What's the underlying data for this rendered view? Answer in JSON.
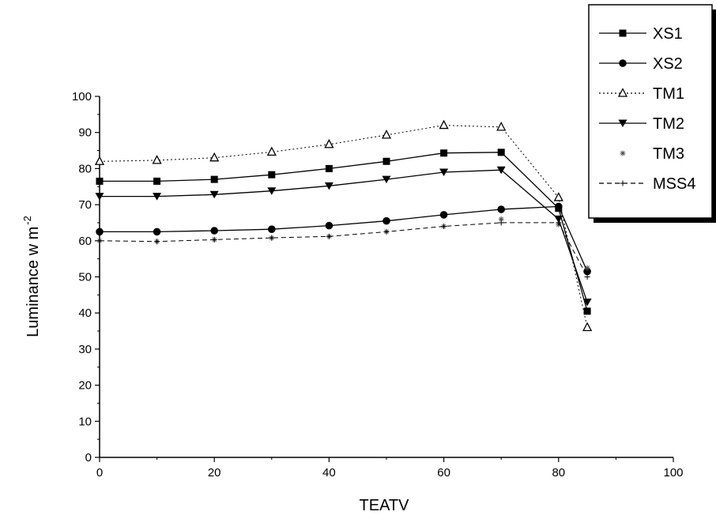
{
  "chart_data": {
    "type": "line",
    "title": "",
    "xlabel": "TEATV",
    "ylabel": "Luminance w m",
    "ylabel_exponent": "-2",
    "xlim": [
      0,
      100
    ],
    "ylim": [
      0,
      100
    ],
    "x_ticks": [
      0,
      20,
      40,
      60,
      80,
      100
    ],
    "x_tick_labels": [
      "0",
      "20",
      "40",
      "60",
      "80",
      "100"
    ],
    "y_ticks": [
      0,
      10,
      20,
      30,
      40,
      50,
      60,
      70,
      80,
      90,
      100
    ],
    "y_tick_labels": [
      "0",
      "10",
      "20",
      "30",
      "40",
      "50",
      "60",
      "70",
      "80",
      "90",
      "100"
    ],
    "grid": false,
    "legend_position": "top-right",
    "x": [
      0,
      10,
      20,
      30,
      40,
      50,
      60,
      70,
      80,
      85
    ],
    "series": [
      {
        "name": "XS1",
        "marker": "filled-square",
        "line": "solid",
        "values": [
          76.5,
          76.5,
          77,
          78.3,
          80,
          82,
          84.3,
          84.5,
          69,
          40.5
        ]
      },
      {
        "name": "XS2",
        "marker": "filled-circle",
        "line": "solid",
        "values": [
          62.5,
          62.5,
          62.8,
          63.2,
          64.2,
          65.5,
          67.2,
          68.7,
          69.5,
          51.5
        ]
      },
      {
        "name": "TM1",
        "marker": "open-triangle-up",
        "line": "dotted",
        "values": [
          82,
          82.3,
          83,
          84.6,
          86.7,
          89.3,
          92,
          91.5,
          72,
          36
        ]
      },
      {
        "name": "TM2",
        "marker": "filled-triangle-down",
        "line": "solid",
        "values": [
          72.3,
          72.3,
          72.8,
          73.8,
          75.2,
          77,
          79,
          79.6,
          66,
          43
        ]
      },
      {
        "name": "TM3",
        "marker": "star",
        "line": "none",
        "values": [
          60,
          59.8,
          60.3,
          60.8,
          61.2,
          62.5,
          64,
          66,
          64.5,
          52.5
        ]
      },
      {
        "name": "MSS4",
        "marker": "cross",
        "line": "dashed",
        "values": [
          60,
          59.8,
          60.3,
          60.8,
          61.2,
          62.5,
          64,
          65,
          65,
          50
        ]
      }
    ],
    "legend_entries": [
      "XS1",
      "XS2",
      "TM1",
      "TM2",
      "TM3",
      "MSS4"
    ],
    "colors": {
      "ink": "#000000",
      "background": "#ffffff"
    }
  }
}
